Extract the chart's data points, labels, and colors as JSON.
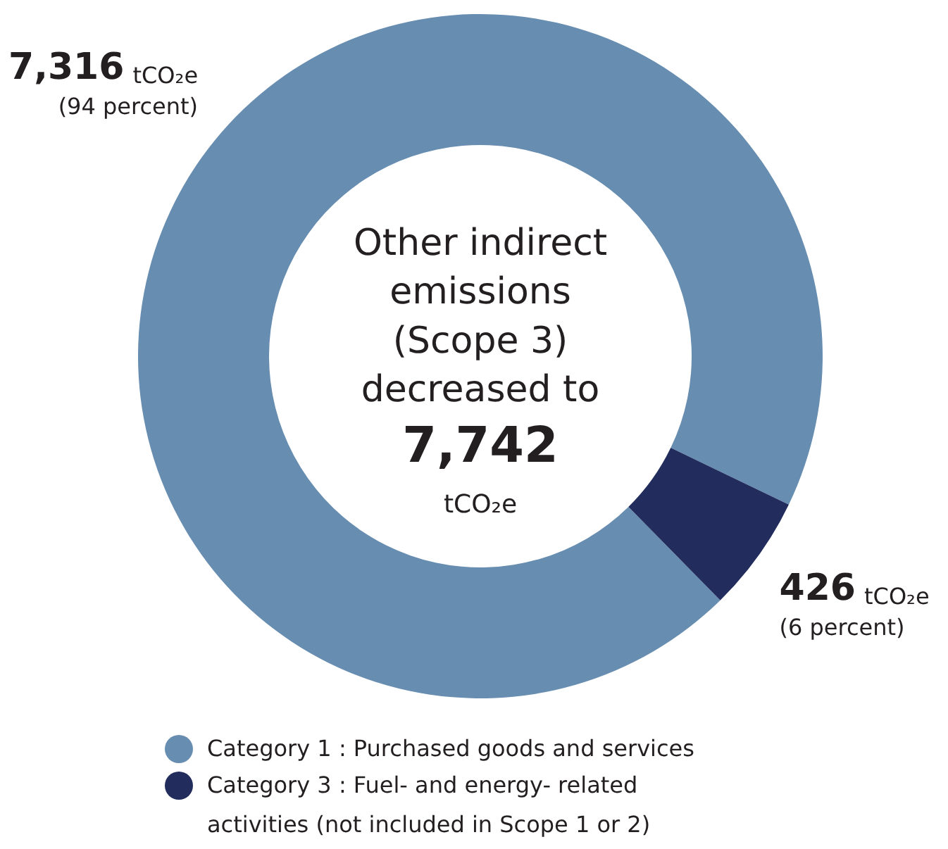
{
  "chart_data": {
    "type": "donut",
    "title": "Other indirect emissions (Scope 3) decreased to",
    "annotations": [
      "7,742",
      "tCO₂e"
    ],
    "categories": [
      "Category 1 : Purchased goods and services",
      "Category 3 : Fuel- and energy- related activities (not included in Scope 1 or 2)"
    ],
    "values": [
      7316,
      426
    ],
    "colors": [
      "#678db1",
      "#222d5d"
    ],
    "value_labels": [
      "7,316 tCO₂e (94 percent)",
      "426 tCO₂e (6 percent)"
    ],
    "legend": "bottom"
  }
}
